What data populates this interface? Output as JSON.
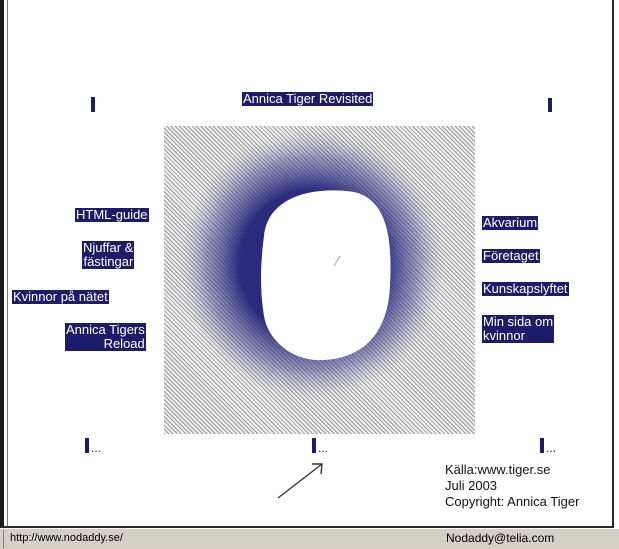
{
  "title": "Annica Tiger Revisited",
  "left_links": [
    "HTML-guide",
    "Njuffar &\nfästingar",
    "Kvinnor på nätet",
    "Annica Tigers\nReload"
  ],
  "right_links": [
    "Akvarium",
    "Företaget",
    "Kunskapslyftet",
    "Min sida om\nkvinnor"
  ],
  "more_marker": "...",
  "credits": {
    "source": "Källa:www.tiger.se",
    "date": "Juli 2003",
    "copyright": "Copyright: Annica Tiger"
  },
  "status": {
    "url": "http://www.nodaddy.se/",
    "email": "Nodaddy@telia.com"
  },
  "colors": {
    "link_bg": "#1c1c6a",
    "link_text": "#ffffff",
    "blob": "#23237a",
    "status_bg": "#d4d0c8"
  },
  "icons": [
    "arrow-pointer-icon"
  ]
}
